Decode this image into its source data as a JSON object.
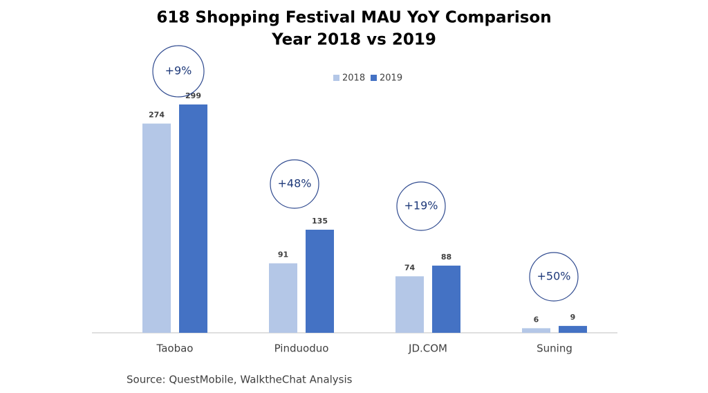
{
  "chart_data": {
    "type": "bar",
    "title": "618 Shopping Festival MAU YoY Comparison",
    "subtitle": "Year 2018 vs 2019",
    "categories": [
      "Taobao",
      "Pinduoduo",
      "JD.COM",
      "Suning"
    ],
    "series": [
      {
        "name": "2018",
        "color": "#b4c7e7",
        "values": [
          274,
          91,
          74,
          6
        ]
      },
      {
        "name": "2019",
        "color": "#4472c4",
        "values": [
          299,
          135,
          88,
          9
        ]
      }
    ],
    "annotations": [
      "+9%",
      "+48%",
      "+19%",
      "+50%"
    ],
    "source": "Source: QuestMobile,  WalktheChat Analysis"
  }
}
